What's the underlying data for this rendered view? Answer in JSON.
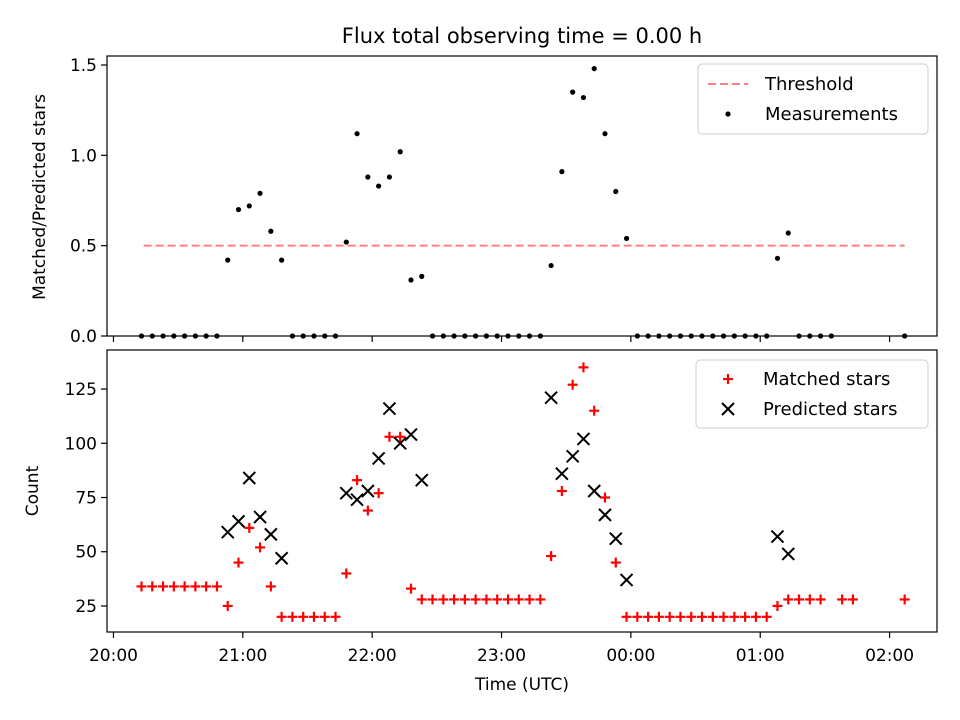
{
  "title": "Flux total observing time = 0.00 h",
  "chart_data": [
    {
      "type": "scatter",
      "ylabel": "Matched/Predicted stars",
      "xlim": [
        "19:57",
        "02:22"
      ],
      "ylim": [
        0,
        1.55
      ],
      "yticks": [
        0.0,
        0.5,
        1.0,
        1.5
      ],
      "ytick_labels": [
        "0.0",
        "0.5",
        "1.0",
        "1.5"
      ],
      "grid": false,
      "legend": "top-right",
      "series": [
        {
          "name": "Threshold",
          "kind": "line",
          "style": "dashed",
          "color": "#ff7f7f",
          "points": [
            [
              "20:14",
              0.5
            ],
            [
              "02:07",
              0.5
            ]
          ]
        },
        {
          "name": "Measurements",
          "kind": "scatter",
          "marker": "dot",
          "color": "#000000",
          "points": [
            [
              "20:13",
              0.0
            ],
            [
              "20:18",
              0.0
            ],
            [
              "20:23",
              0.0
            ],
            [
              "20:28",
              0.0
            ],
            [
              "20:33",
              0.0
            ],
            [
              "20:38",
              0.0
            ],
            [
              "20:43",
              0.0
            ],
            [
              "20:48",
              0.0
            ],
            [
              "20:53",
              0.42
            ],
            [
              "20:58",
              0.7
            ],
            [
              "21:03",
              0.72
            ],
            [
              "21:08",
              0.79
            ],
            [
              "21:13",
              0.58
            ],
            [
              "21:18",
              0.42
            ],
            [
              "21:23",
              0.0
            ],
            [
              "21:28",
              0.0
            ],
            [
              "21:33",
              0.0
            ],
            [
              "21:38",
              0.0
            ],
            [
              "21:43",
              0.0
            ],
            [
              "21:48",
              0.52
            ],
            [
              "21:53",
              1.12
            ],
            [
              "21:58",
              0.88
            ],
            [
              "22:03",
              0.83
            ],
            [
              "22:08",
              0.88
            ],
            [
              "22:13",
              1.02
            ],
            [
              "22:18",
              0.31
            ],
            [
              "22:23",
              0.33
            ],
            [
              "22:28",
              0.0
            ],
            [
              "22:33",
              0.0
            ],
            [
              "22:38",
              0.0
            ],
            [
              "22:43",
              0.0
            ],
            [
              "22:48",
              0.0
            ],
            [
              "22:53",
              0.0
            ],
            [
              "22:58",
              0.0
            ],
            [
              "23:03",
              0.0
            ],
            [
              "23:08",
              0.0
            ],
            [
              "23:13",
              0.0
            ],
            [
              "23:18",
              0.0
            ],
            [
              "23:23",
              0.39
            ],
            [
              "23:28",
              0.91
            ],
            [
              "23:33",
              1.35
            ],
            [
              "23:38",
              1.32
            ],
            [
              "23:43",
              1.48
            ],
            [
              "23:48",
              1.12
            ],
            [
              "23:53",
              0.8
            ],
            [
              "23:58",
              0.54
            ],
            [
              "00:03",
              0.0
            ],
            [
              "00:08",
              0.0
            ],
            [
              "00:13",
              0.0
            ],
            [
              "00:18",
              0.0
            ],
            [
              "00:23",
              0.0
            ],
            [
              "00:28",
              0.0
            ],
            [
              "00:33",
              0.0
            ],
            [
              "00:38",
              0.0
            ],
            [
              "00:43",
              0.0
            ],
            [
              "00:48",
              0.0
            ],
            [
              "00:53",
              0.0
            ],
            [
              "00:58",
              0.0
            ],
            [
              "01:03",
              0.0
            ],
            [
              "01:08",
              0.43
            ],
            [
              "01:13",
              0.57
            ],
            [
              "01:18",
              0.0
            ],
            [
              "01:23",
              0.0
            ],
            [
              "01:28",
              0.0
            ],
            [
              "01:33",
              0.0
            ],
            [
              "02:07",
              0.0
            ]
          ]
        }
      ]
    },
    {
      "type": "scatter",
      "ylabel": "Count",
      "xlabel": "Time (UTC)",
      "xlim": [
        "19:57",
        "02:22"
      ],
      "ylim": [
        13,
        143
      ],
      "yticks": [
        25,
        50,
        75,
        100,
        125
      ],
      "ytick_labels": [
        "25",
        "50",
        "75",
        "100",
        "125"
      ],
      "xticks": [
        "20:00",
        "21:00",
        "22:00",
        "23:00",
        "00:00",
        "01:00",
        "02:00"
      ],
      "grid": false,
      "legend": "top-right",
      "series": [
        {
          "name": "Matched stars",
          "kind": "scatter",
          "marker": "plus",
          "color": "#ff0000",
          "points": [
            [
              "20:13",
              34
            ],
            [
              "20:18",
              34
            ],
            [
              "20:23",
              34
            ],
            [
              "20:28",
              34
            ],
            [
              "20:33",
              34
            ],
            [
              "20:38",
              34
            ],
            [
              "20:43",
              34
            ],
            [
              "20:48",
              34
            ],
            [
              "20:53",
              25
            ],
            [
              "20:58",
              45
            ],
            [
              "21:03",
              61
            ],
            [
              "21:08",
              52
            ],
            [
              "21:13",
              34
            ],
            [
              "21:18",
              20
            ],
            [
              "21:23",
              20
            ],
            [
              "21:28",
              20
            ],
            [
              "21:33",
              20
            ],
            [
              "21:38",
              20
            ],
            [
              "21:43",
              20
            ],
            [
              "21:48",
              40
            ],
            [
              "21:53",
              83
            ],
            [
              "21:58",
              69
            ],
            [
              "22:03",
              77
            ],
            [
              "22:08",
              103
            ],
            [
              "22:13",
              103
            ],
            [
              "22:18",
              33
            ],
            [
              "22:23",
              28
            ],
            [
              "22:28",
              28
            ],
            [
              "22:33",
              28
            ],
            [
              "22:38",
              28
            ],
            [
              "22:43",
              28
            ],
            [
              "22:48",
              28
            ],
            [
              "22:53",
              28
            ],
            [
              "22:58",
              28
            ],
            [
              "23:03",
              28
            ],
            [
              "23:08",
              28
            ],
            [
              "23:13",
              28
            ],
            [
              "23:18",
              28
            ],
            [
              "23:23",
              48
            ],
            [
              "23:28",
              78
            ],
            [
              "23:33",
              127
            ],
            [
              "23:38",
              135
            ],
            [
              "23:43",
              115
            ],
            [
              "23:48",
              75
            ],
            [
              "23:53",
              45
            ],
            [
              "23:58",
              20
            ],
            [
              "00:03",
              20
            ],
            [
              "00:08",
              20
            ],
            [
              "00:13",
              20
            ],
            [
              "00:18",
              20
            ],
            [
              "00:23",
              20
            ],
            [
              "00:28",
              20
            ],
            [
              "00:33",
              20
            ],
            [
              "00:38",
              20
            ],
            [
              "00:43",
              20
            ],
            [
              "00:48",
              20
            ],
            [
              "00:53",
              20
            ],
            [
              "00:58",
              20
            ],
            [
              "01:03",
              20
            ],
            [
              "01:08",
              25
            ],
            [
              "01:13",
              28
            ],
            [
              "01:18",
              28
            ],
            [
              "01:23",
              28
            ],
            [
              "01:28",
              28
            ],
            [
              "01:38",
              28
            ],
            [
              "01:43",
              28
            ],
            [
              "02:07",
              28
            ]
          ]
        },
        {
          "name": "Predicted stars",
          "kind": "scatter",
          "marker": "x",
          "color": "#000000",
          "points": [
            [
              "20:53",
              59
            ],
            [
              "20:58",
              64
            ],
            [
              "21:03",
              84
            ],
            [
              "21:08",
              66
            ],
            [
              "21:13",
              58
            ],
            [
              "21:18",
              47
            ],
            [
              "21:48",
              77
            ],
            [
              "21:53",
              74
            ],
            [
              "21:58",
              78
            ],
            [
              "22:03",
              93
            ],
            [
              "22:08",
              116
            ],
            [
              "22:13",
              100
            ],
            [
              "22:18",
              104
            ],
            [
              "22:23",
              83
            ],
            [
              "23:23",
              121
            ],
            [
              "23:28",
              86
            ],
            [
              "23:33",
              94
            ],
            [
              "23:38",
              102
            ],
            [
              "23:43",
              78
            ],
            [
              "23:48",
              67
            ],
            [
              "23:53",
              56
            ],
            [
              "23:58",
              37
            ],
            [
              "01:08",
              57
            ],
            [
              "01:13",
              49
            ]
          ]
        }
      ]
    }
  ]
}
